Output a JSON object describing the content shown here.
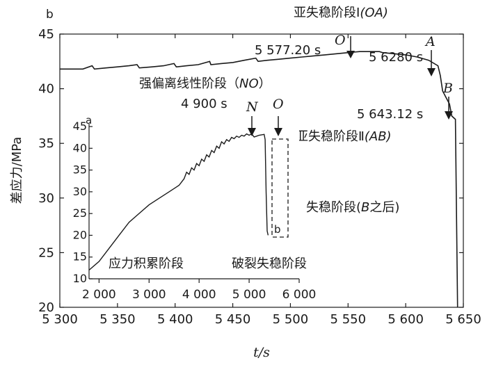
{
  "chart_data": [
    {
      "panel_label": "b",
      "type": "line",
      "xlabel": "t/s",
      "ylabel": "差应力/MPa",
      "xlim": [
        5300,
        5650
      ],
      "ylim": [
        20,
        45
      ],
      "x_ticks": [
        5300,
        5350,
        5400,
        5450,
        5500,
        5550,
        5600,
        5650
      ],
      "x_tick_labels": [
        "5 300",
        "5 350",
        "5 400",
        "5 450",
        "5 500",
        "5 550",
        "5 600",
        "5 650"
      ],
      "y_ticks": [
        20,
        25,
        30,
        35,
        40,
        45
      ],
      "y_tick_labels": [
        "20",
        "25",
        "30",
        "35",
        "40",
        "45"
      ],
      "series": [
        {
          "x": [
            5300,
            5310,
            5320,
            5328,
            5330,
            5340,
            5350,
            5360,
            5367,
            5369,
            5380,
            5390,
            5399,
            5401,
            5410,
            5420,
            5430,
            5431,
            5440,
            5450,
            5460,
            5470,
            5472,
            5480,
            5490,
            5500,
            5510,
            5520,
            5530,
            5540,
            5550,
            5560,
            5570,
            5577.2,
            5580,
            5590,
            5600,
            5610,
            5620,
            5628,
            5630,
            5632,
            5635,
            5638,
            5640,
            5643.12,
            5645
          ],
          "y": [
            41.8,
            41.8,
            41.8,
            42.1,
            41.8,
            41.9,
            42.0,
            42.1,
            42.2,
            41.9,
            42.0,
            42.1,
            42.3,
            42.0,
            42.1,
            42.2,
            42.5,
            42.2,
            42.3,
            42.4,
            42.6,
            42.8,
            42.5,
            42.6,
            42.7,
            42.8,
            42.9,
            43.0,
            43.1,
            43.2,
            43.3,
            43.4,
            43.4,
            43.4,
            43.3,
            43.2,
            43.1,
            42.9,
            42.6,
            42.1,
            41.2,
            39.8,
            39.2,
            38.6,
            37.5,
            37.2,
            20.0
          ]
        }
      ],
      "annotations": [
        {
          "text": "亚失稳阶段Ⅰ",
          "italic_suffix": "(OA)"
        },
        {
          "text": "5 577.20 s",
          "x": 5577.2
        },
        {
          "text": "5 6280 s",
          "x": 5628
        },
        {
          "text": "5 643.12 s",
          "x": 5643.12
        },
        {
          "text": "强偏离线性阶段（",
          "italic_mid": "NO",
          "suffix": "）"
        },
        {
          "text": "4 900 s"
        },
        {
          "text": "亚失稳阶段Ⅱ",
          "italic_suffix": "(AB)"
        },
        {
          "text": "失稳阶段(",
          "italic_mid": "B",
          "suffix": "之后)"
        }
      ],
      "point_labels": [
        {
          "label": "O",
          "x": 5577.2
        },
        {
          "label": "A",
          "x": 5628
        },
        {
          "label": "B",
          "x": 5643.12
        }
      ]
    },
    {
      "panel_label": "a",
      "type": "line",
      "xlim": [
        1800,
        6000
      ],
      "ylim": [
        10,
        45
      ],
      "x_ticks": [
        2000,
        3000,
        4000,
        5000,
        6000
      ],
      "x_tick_labels": [
        "2 000",
        "3 000",
        "4 000",
        "5 000",
        "6 000"
      ],
      "y_ticks": [
        10,
        15,
        20,
        25,
        30,
        35,
        40,
        45
      ],
      "y_tick_labels": [
        "10",
        "15",
        "20",
        "25",
        "30",
        "35",
        "40",
        "45"
      ],
      "series": [
        {
          "x": [
            1800,
            2000,
            2200,
            2400,
            2600,
            2800,
            3000,
            3200,
            3400,
            3600,
            3700,
            3750,
            3800,
            3850,
            3900,
            3950,
            4000,
            4050,
            4100,
            4150,
            4200,
            4250,
            4300,
            4350,
            4400,
            4450,
            4500,
            4550,
            4600,
            4650,
            4700,
            4750,
            4800,
            4850,
            4900,
            4950,
            5000,
            5050,
            5100,
            5150,
            5200,
            5300,
            5320,
            5340,
            5360,
            5380
          ],
          "y": [
            12,
            14,
            17,
            20,
            23,
            25,
            27,
            28.5,
            30,
            31.5,
            33,
            34.5,
            34,
            35.5,
            35,
            36.5,
            36,
            37.5,
            37,
            38.5,
            38,
            39.5,
            39,
            40.5,
            40,
            41.5,
            41,
            42,
            41.6,
            42.5,
            42.2,
            42.8,
            42.5,
            43.0,
            42.8,
            43.3,
            43.0,
            43.3,
            42.6,
            42.8,
            43.0,
            43.2,
            42.0,
            30.0,
            21.0,
            20.0
          ]
        }
      ],
      "point_labels": [
        {
          "label": "N",
          "x": 4900
        },
        {
          "label": "O",
          "x": 5200
        }
      ],
      "region_labels": [
        "应力积累阶段",
        "破裂失稳阶段"
      ],
      "zoom_box_label": "b"
    }
  ]
}
